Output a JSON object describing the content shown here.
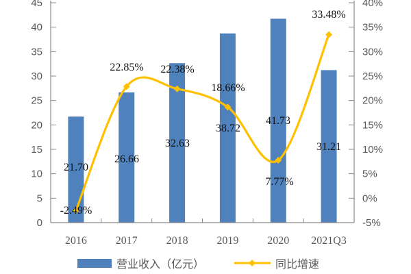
{
  "chart_data": {
    "type": "bar+line",
    "categories": [
      "2016",
      "2017",
      "2018",
      "2019",
      "2020",
      "2021Q3"
    ],
    "series": [
      {
        "name": "营业收入（亿元）",
        "type": "bar",
        "axis": "left",
        "values": [
          21.7,
          26.66,
          32.63,
          38.72,
          41.73,
          31.21
        ],
        "labels": [
          "21.70",
          "26.66",
          "32.63",
          "38.72",
          "41.73",
          "31.21"
        ],
        "color": "#4F81BD"
      },
      {
        "name": "同比增速",
        "type": "line",
        "axis": "right",
        "smooth": true,
        "marker": "diamond",
        "values": [
          -2.49,
          22.85,
          22.38,
          18.66,
          7.77,
          33.48
        ],
        "labels": [
          "-2.49%",
          "22.85%",
          "22.38%",
          "18.66%",
          "7.77%",
          "33.48%"
        ],
        "color": "#FFC000"
      }
    ],
    "left_axis": {
      "ylim": [
        0,
        45
      ],
      "ticks": [
        "0",
        "5",
        "10",
        "15",
        "20",
        "25",
        "30",
        "35",
        "40",
        "45"
      ]
    },
    "right_axis": {
      "ylim": [
        -5,
        40
      ],
      "unit": "%",
      "ticks": [
        "-5%",
        "0%",
        "5%",
        "10%",
        "15%",
        "20%",
        "25%",
        "30%",
        "35%",
        "40%"
      ]
    },
    "grid": false,
    "legend": "bottom"
  }
}
